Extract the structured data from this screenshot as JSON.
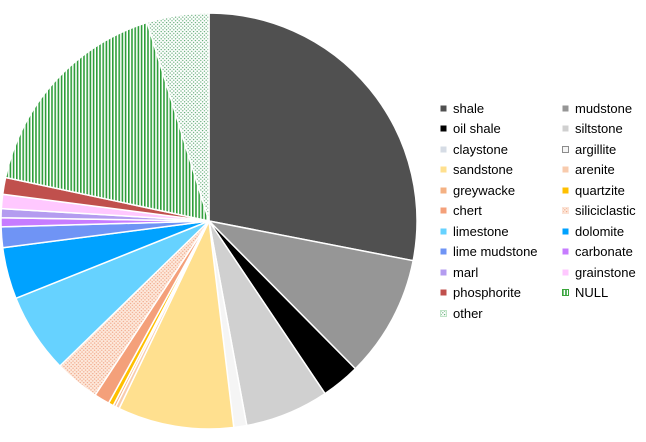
{
  "chart_data": {
    "type": "pie",
    "title": "",
    "legend_position": "right",
    "legend_columns": 2,
    "series": [
      {
        "label": "shale",
        "value": 28.0,
        "color": "#505050",
        "pattern": "solid"
      },
      {
        "label": "mudstone",
        "value": 9.5,
        "color": "#969696",
        "pattern": "solid"
      },
      {
        "label": "oil shale",
        "value": 3.0,
        "color": "#000000",
        "pattern": "solid"
      },
      {
        "label": "siltstone",
        "value": 6.5,
        "color": "#d0d0d0",
        "pattern": "solid"
      },
      {
        "label": "claystone",
        "value": 0.0,
        "color": "#d6dce5",
        "pattern": "solid"
      },
      {
        "label": "argillite",
        "value": 1.0,
        "color": "#f5f5f5",
        "pattern": "solid"
      },
      {
        "label": "sandstone",
        "value": 9.0,
        "color": "#ffe08f",
        "pattern": "solid"
      },
      {
        "label": "arenite",
        "value": 0.3,
        "color": "#f8cbad",
        "pattern": "solid"
      },
      {
        "label": "greywacke",
        "value": 0.2,
        "color": "#f4b183",
        "pattern": "solid"
      },
      {
        "label": "quartzite",
        "value": 0.4,
        "color": "#ffc000",
        "pattern": "solid"
      },
      {
        "label": "chert",
        "value": 1.2,
        "color": "#f4a07a",
        "pattern": "solid"
      },
      {
        "label": "siliciclastic",
        "value": 3.5,
        "color": "#fbe2d5",
        "pattern": "dotted"
      },
      {
        "label": "limestone",
        "value": 6.2,
        "color": "#66d2ff",
        "pattern": "solid"
      },
      {
        "label": "dolomite",
        "value": 4.0,
        "color": "#00a2ff",
        "pattern": "solid"
      },
      {
        "label": "lime mudstone",
        "value": 1.6,
        "color": "#6f94f5",
        "pattern": "solid"
      },
      {
        "label": "carbonate",
        "value": 0.7,
        "color": "#c77cff",
        "pattern": "solid"
      },
      {
        "label": "marl",
        "value": 0.7,
        "color": "#b49cf0",
        "pattern": "solid"
      },
      {
        "label": "grainstone",
        "value": 1.1,
        "color": "#ffc8ff",
        "pattern": "solid"
      },
      {
        "label": "phosphorite",
        "value": 1.3,
        "color": "#c0504d",
        "pattern": "solid"
      },
      {
        "label": "NULL",
        "value": 16.8,
        "color": "#3aa63a",
        "pattern": "vertical-stripes"
      },
      {
        "label": "other",
        "value": 4.8,
        "color": "#bfe3c6",
        "pattern": "dotted"
      }
    ]
  }
}
